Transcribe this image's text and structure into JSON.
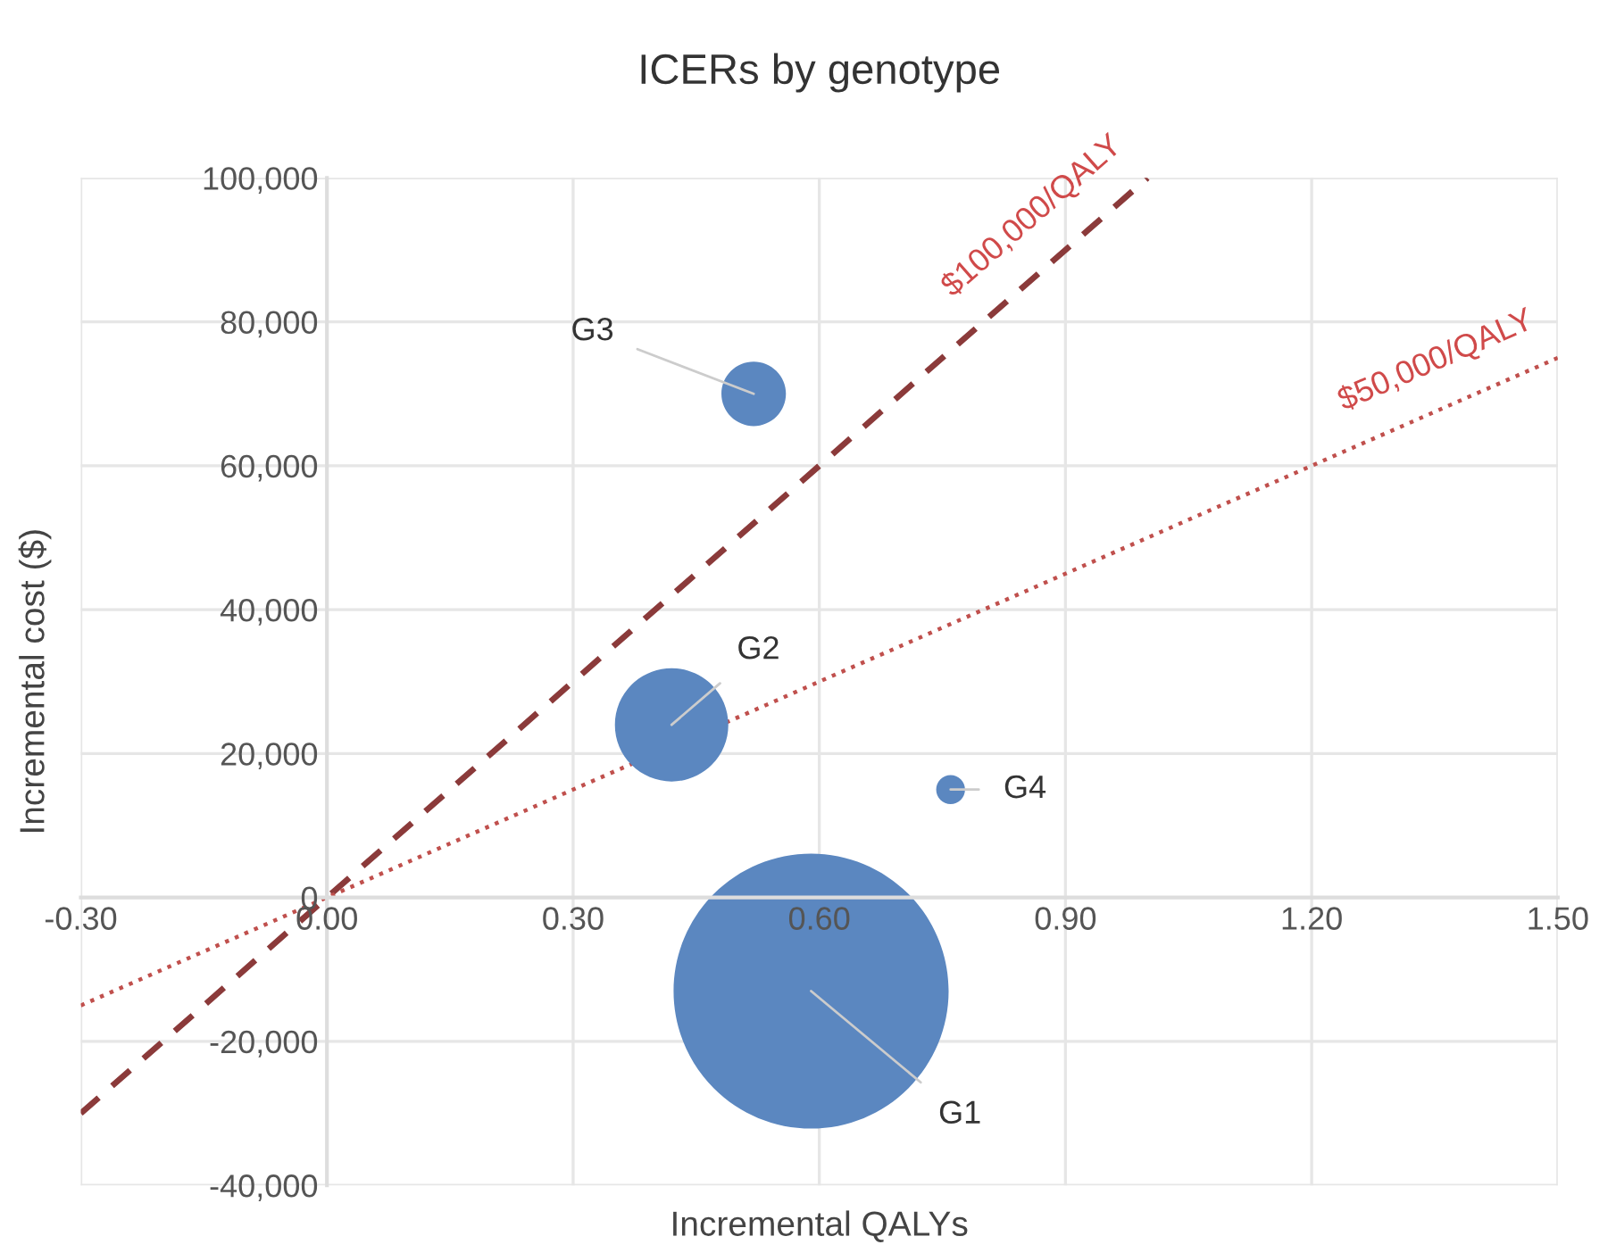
{
  "chart_data": {
    "type": "bubble",
    "title": "ICERs by genotype",
    "xlabel": "Incremental QALYs",
    "ylabel": "Incremental cost ($)",
    "xlim": [
      -0.3,
      1.5
    ],
    "xticks": [
      {
        "value": -0.3,
        "label": "-0.30"
      },
      {
        "value": 0,
        "label": "0.00"
      },
      {
        "value": 0.3,
        "label": "0.30"
      },
      {
        "value": 0.6,
        "label": "0.60"
      },
      {
        "value": 0.9,
        "label": "0.90"
      },
      {
        "value": 1.2,
        "label": "1.20"
      },
      {
        "value": 1.5,
        "label": "1.50"
      }
    ],
    "ylim": [
      -40000,
      100000
    ],
    "yticks": [
      {
        "value": -40000,
        "label": "-40,000"
      },
      {
        "value": -20000,
        "label": "-20,000"
      },
      {
        "value": 0,
        "label": "0"
      },
      {
        "value": 20000,
        "label": "20,000"
      },
      {
        "value": 40000,
        "label": "40,000"
      },
      {
        "value": 60000,
        "label": "60,000"
      },
      {
        "value": 80000,
        "label": "80,000"
      },
      {
        "value": 100000,
        "label": "100,000"
      }
    ],
    "grid": true,
    "series": [
      {
        "color": "#5b87c0",
        "x": [
          0.59,
          0.42,
          0.52,
          0.76
        ],
        "values": [
          -13000,
          24000,
          70000,
          15000
        ],
        "sizes": [
          1,
          0.17,
          0.055,
          0.011
        ]
      },
      {
        "type": "line",
        "name": "$100,000/QALY",
        "color": "#8b3a3a",
        "line_style": "dashed",
        "x": [
          -0.3,
          1.0
        ],
        "values": [
          -30000,
          100000
        ]
      },
      {
        "type": "line",
        "name": "$50,000/QALY",
        "color": "#c0504d",
        "line_style": "dotted",
        "x": [
          -0.3,
          1.5
        ],
        "values": [
          -15000,
          75000
        ]
      }
    ],
    "annotations": [
      {
        "text": "G1",
        "x": 0.59,
        "y": -13000
      },
      {
        "text": "G2",
        "x": 0.42,
        "y": 24000
      },
      {
        "text": "G3",
        "x": 0.52,
        "y": 70000
      },
      {
        "text": "G4",
        "x": 0.76,
        "y": 15000
      }
    ]
  }
}
